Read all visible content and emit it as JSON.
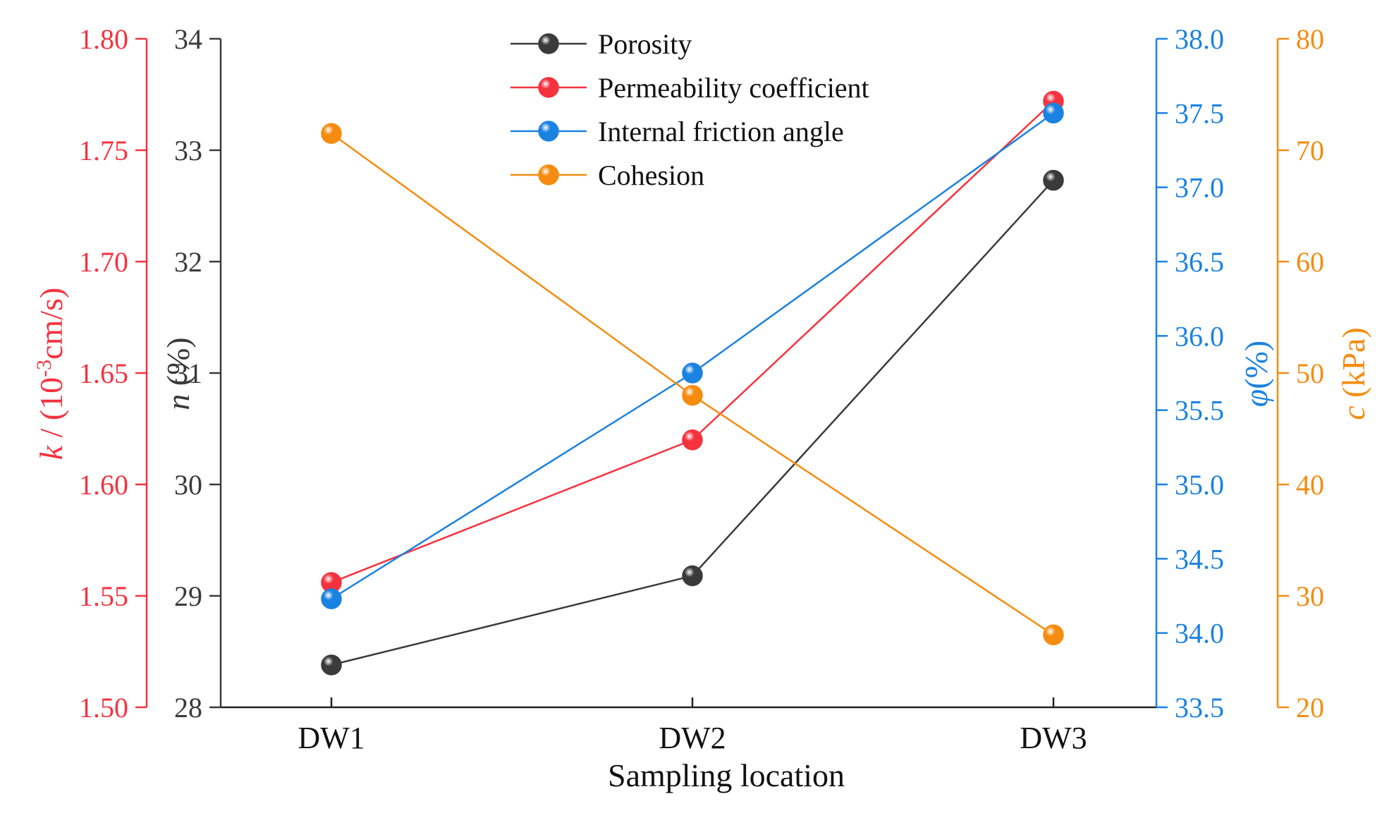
{
  "chart_data": {
    "type": "line",
    "title": "",
    "xlabel": "Sampling location",
    "categories": [
      "DW1",
      "DW2",
      "DW3"
    ],
    "axes": {
      "k": {
        "side": "left-outer",
        "label_var": "k",
        "label_rest": " / (10",
        "label_sup": "-3",
        "label_tail": "cm/s)",
        "ylim": [
          1.5,
          1.8
        ],
        "ticks": [
          "1.50",
          "1.55",
          "1.60",
          "1.65",
          "1.70",
          "1.75",
          "1.80"
        ],
        "color": "#f5333f"
      },
      "n": {
        "side": "left-inner",
        "label_var": "n",
        "label_rest": " (%)",
        "ylim": [
          28,
          34
        ],
        "ticks": [
          "28",
          "29",
          "30",
          "31",
          "32",
          "33",
          "34"
        ],
        "color": "#3a3a3a"
      },
      "phi": {
        "side": "right-inner",
        "label_var": "φ",
        "label_rest": "(%)",
        "ylim": [
          33.5,
          38.0
        ],
        "ticks": [
          "33.5",
          "34.0",
          "34.5",
          "35.0",
          "35.5",
          "36.0",
          "36.5",
          "37.0",
          "37.5",
          "38.0"
        ],
        "color": "#1a82e0"
      },
      "c": {
        "side": "right-outer",
        "label_var": "c",
        "label_rest": " (kPa)",
        "ylim": [
          20,
          80
        ],
        "ticks": [
          "20",
          "30",
          "40",
          "50",
          "60",
          "70",
          "80"
        ],
        "color": "#f58c10"
      }
    },
    "series": [
      {
        "name": "Porosity",
        "axis": "n",
        "values": [
          28.38,
          29.18,
          32.73
        ],
        "color": "#3a3a3a"
      },
      {
        "name": "Permeability coefficient",
        "axis": "k",
        "values": [
          1.556,
          1.62,
          1.772
        ],
        "color": "#f5333f"
      },
      {
        "name": "Internal friction angle",
        "axis": "phi",
        "values": [
          34.23,
          35.75,
          37.5
        ],
        "color": "#1a82e0"
      },
      {
        "name": "Cohesion",
        "axis": "c",
        "values": [
          71.5,
          48.0,
          26.5
        ],
        "color": "#f58c10"
      }
    ],
    "legend_position": "top-center",
    "grid": false
  }
}
